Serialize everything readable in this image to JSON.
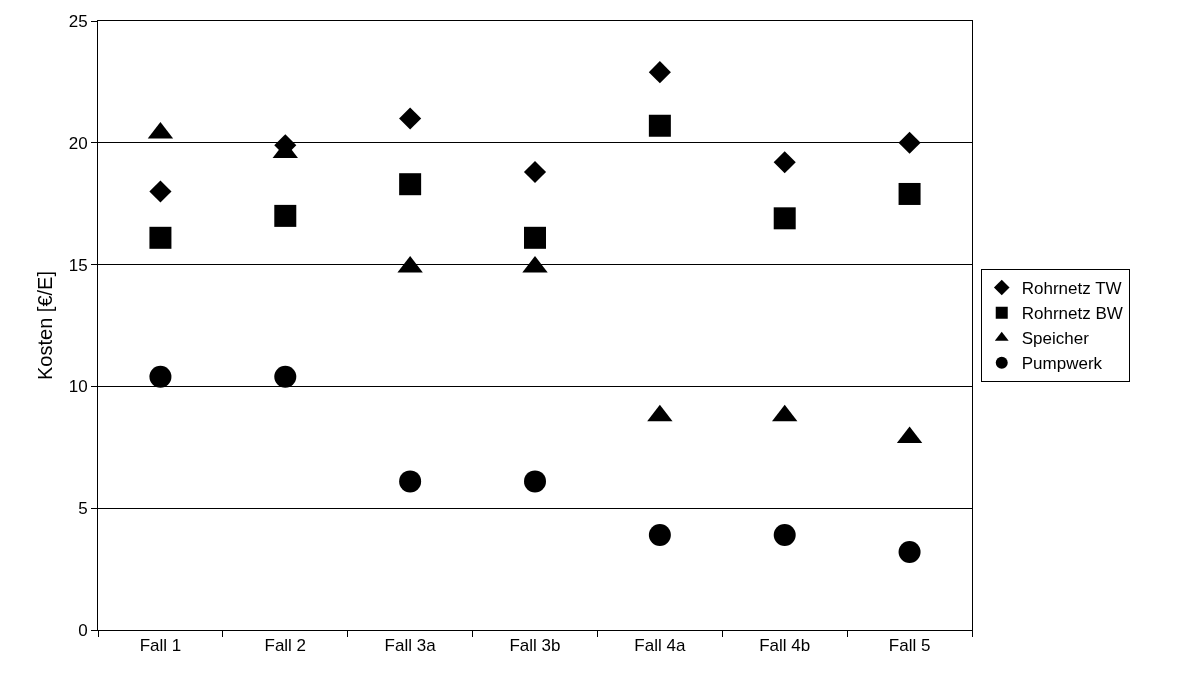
{
  "chart_data": {
    "type": "scatter",
    "ylabel": "Kosten [€/E]",
    "categories": [
      "Fall 1",
      "Fall 2",
      "Fall 3a",
      "Fall 3b",
      "Fall 4a",
      "Fall 4b",
      "Fall 5"
    ],
    "series": [
      {
        "name": "Rohrnetz TW",
        "color": "#000000",
        "marker": "diamond",
        "values": [
          18.0,
          19.9,
          21.0,
          18.8,
          22.9,
          19.2,
          20.0
        ]
      },
      {
        "name": "Rohrnetz BW",
        "color": "#000000",
        "marker": "square",
        "values": [
          16.1,
          17.0,
          18.3,
          16.1,
          20.7,
          16.9,
          17.9
        ]
      },
      {
        "name": "Speicher",
        "color": "#000000",
        "marker": "triangle",
        "values": [
          20.4,
          19.6,
          14.9,
          14.9,
          8.8,
          8.8,
          7.9
        ]
      },
      {
        "name": "Pumpwerk",
        "color": "#000000",
        "marker": "circle",
        "values": [
          10.4,
          10.4,
          6.1,
          6.1,
          3.9,
          3.9,
          3.2
        ]
      }
    ],
    "ylim": [
      0,
      25
    ],
    "yticks": [
      0,
      5,
      10,
      15,
      20,
      25
    ],
    "grid": "y",
    "legend": "right"
  }
}
